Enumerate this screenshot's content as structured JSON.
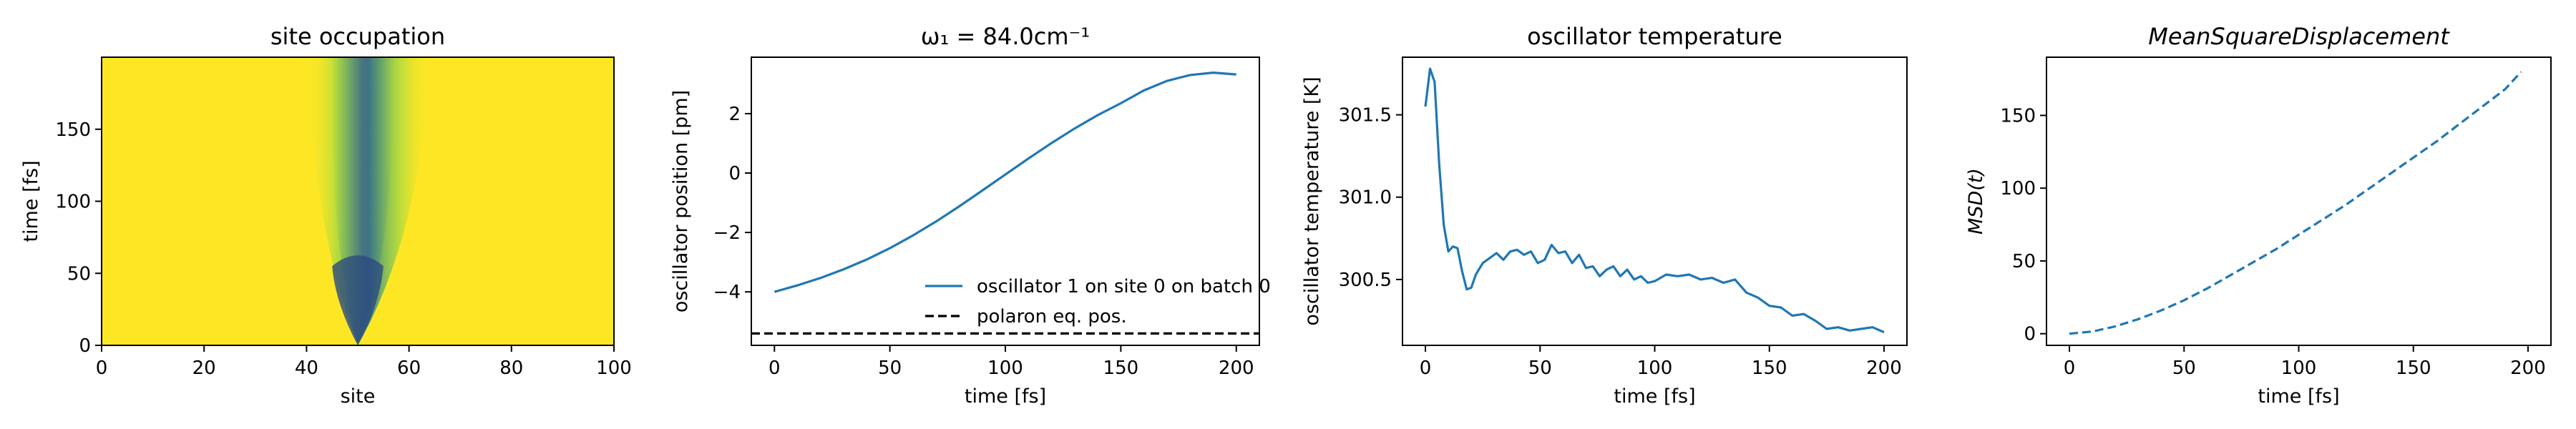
{
  "chart_data": [
    {
      "type": "heatmap",
      "title": "site occupation",
      "xlabel": "site",
      "ylabel": "time [fs]",
      "xlim": [
        0,
        100
      ],
      "ylim": [
        0,
        200
      ],
      "xticks": [
        0,
        20,
        40,
        60,
        80,
        100
      ],
      "yticks": [
        0,
        50,
        100,
        150
      ],
      "colormap": [
        "#fde725",
        "#5ec962",
        "#21918c",
        "#3b528b",
        "#440154"
      ],
      "background_color": "#fde725",
      "spread": {
        "center_site": 50,
        "start_time": 0,
        "end_time": 200,
        "min_left_site": 40,
        "max_right_site": 64
      }
    },
    {
      "type": "line",
      "title": "ω₁ = 84.0cm⁻¹",
      "xlabel": "time [fs]",
      "ylabel": "oscillator position [pm]",
      "xlim": [
        -10,
        210
      ],
      "ylim": [
        -5.8,
        3.9
      ],
      "xticks": [
        0,
        50,
        100,
        150,
        200
      ],
      "yticks": [
        -4,
        -2,
        0,
        2
      ],
      "legend_position": "lower-right",
      "series": [
        {
          "name": "oscillator 1 on site 0 on batch 0",
          "color": "#1f77b4",
          "style": "solid",
          "x": [
            0,
            10,
            20,
            30,
            40,
            50,
            60,
            70,
            80,
            90,
            100,
            110,
            120,
            130,
            140,
            150,
            160,
            170,
            180,
            190,
            200
          ],
          "y": [
            -4.0,
            -3.78,
            -3.53,
            -3.24,
            -2.91,
            -2.53,
            -2.1,
            -1.63,
            -1.12,
            -0.59,
            -0.05,
            0.49,
            1.01,
            1.5,
            1.95,
            2.35,
            2.78,
            3.1,
            3.3,
            3.38,
            3.32
          ]
        },
        {
          "name": "polaron eq. pos.",
          "color": "#000000",
          "style": "dashed",
          "y_constant": -5.4
        }
      ]
    },
    {
      "type": "line",
      "title": "oscillator temperature",
      "xlabel": "time [fs]",
      "ylabel": "oscillator temperature [K]",
      "xlim": [
        -10,
        210
      ],
      "ylim": [
        300.1,
        301.85
      ],
      "xticks": [
        0,
        50,
        100,
        150,
        200
      ],
      "yticks": [
        300.5,
        301.0,
        301.5
      ],
      "series": [
        {
          "name": "",
          "color": "#1f77b4",
          "style": "solid",
          "x": [
            0,
            2,
            4,
            6,
            8,
            10,
            12,
            14,
            16,
            18,
            20,
            22,
            25,
            28,
            31,
            34,
            37,
            40,
            43,
            46,
            49,
            52,
            55,
            58,
            61,
            64,
            67,
            70,
            73,
            76,
            79,
            82,
            85,
            88,
            91,
            94,
            97,
            100,
            105,
            110,
            115,
            120,
            125,
            130,
            135,
            140,
            145,
            150,
            155,
            160,
            165,
            170,
            175,
            180,
            185,
            190,
            195,
            200
          ],
          "y": [
            301.55,
            301.78,
            301.7,
            301.2,
            300.83,
            300.67,
            300.7,
            300.69,
            300.55,
            300.44,
            300.45,
            300.53,
            300.6,
            300.63,
            300.66,
            300.62,
            300.67,
            300.68,
            300.65,
            300.67,
            300.6,
            300.62,
            300.71,
            300.66,
            300.67,
            300.6,
            300.65,
            300.57,
            300.58,
            300.52,
            300.56,
            300.58,
            300.52,
            300.56,
            300.5,
            300.52,
            300.48,
            300.49,
            300.53,
            300.52,
            300.53,
            300.5,
            300.51,
            300.48,
            300.5,
            300.42,
            300.39,
            300.34,
            300.33,
            300.28,
            300.29,
            300.25,
            300.2,
            300.21,
            300.19,
            300.2,
            300.21,
            300.18
          ]
        }
      ]
    },
    {
      "type": "line",
      "title": "MeanSquareDisplacement",
      "xlabel": "time [fs]",
      "ylabel": "MSD(t)",
      "xlim": [
        -10,
        210
      ],
      "ylim": [
        -8,
        190
      ],
      "xticks": [
        0,
        50,
        100,
        150,
        200
      ],
      "yticks": [
        0,
        50,
        100,
        150
      ],
      "series": [
        {
          "name": "",
          "color": "#1f77b4",
          "style": "dashed",
          "x": [
            0,
            10,
            20,
            30,
            40,
            50,
            60,
            70,
            80,
            90,
            100,
            110,
            120,
            130,
            140,
            150,
            160,
            170,
            180,
            190,
            197
          ],
          "y": [
            0,
            1.5,
            5,
            10,
            16,
            23,
            31,
            40,
            49,
            58,
            68,
            78,
            88,
            99,
            110,
            121,
            132,
            144,
            156,
            168,
            180
          ]
        }
      ]
    }
  ]
}
